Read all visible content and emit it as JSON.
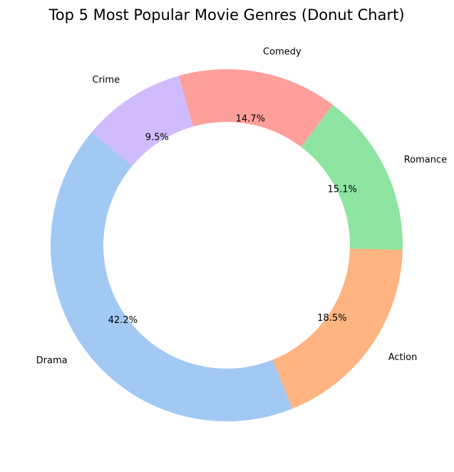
{
  "chart_data": {
    "type": "pie",
    "style": "donut",
    "title": "Top 5 Most Popular Movie Genres (Donut Chart)",
    "slices": [
      {
        "label": "Drama",
        "value": 42.2,
        "pct_label": "42.2%",
        "color": "#a1c9f4"
      },
      {
        "label": "Action",
        "value": 18.5,
        "pct_label": "18.5%",
        "color": "#ffb482"
      },
      {
        "label": "Romance",
        "value": 15.1,
        "pct_label": "15.1%",
        "color": "#8de5a1"
      },
      {
        "label": "Comedy",
        "value": 14.7,
        "pct_label": "14.7%",
        "color": "#ff9f9b"
      },
      {
        "label": "Crime",
        "value": 9.5,
        "pct_label": "9.5%",
        "color": "#d0bbff"
      }
    ],
    "start_angle_deg": 140,
    "direction": "counterclockwise",
    "legend": "none"
  }
}
